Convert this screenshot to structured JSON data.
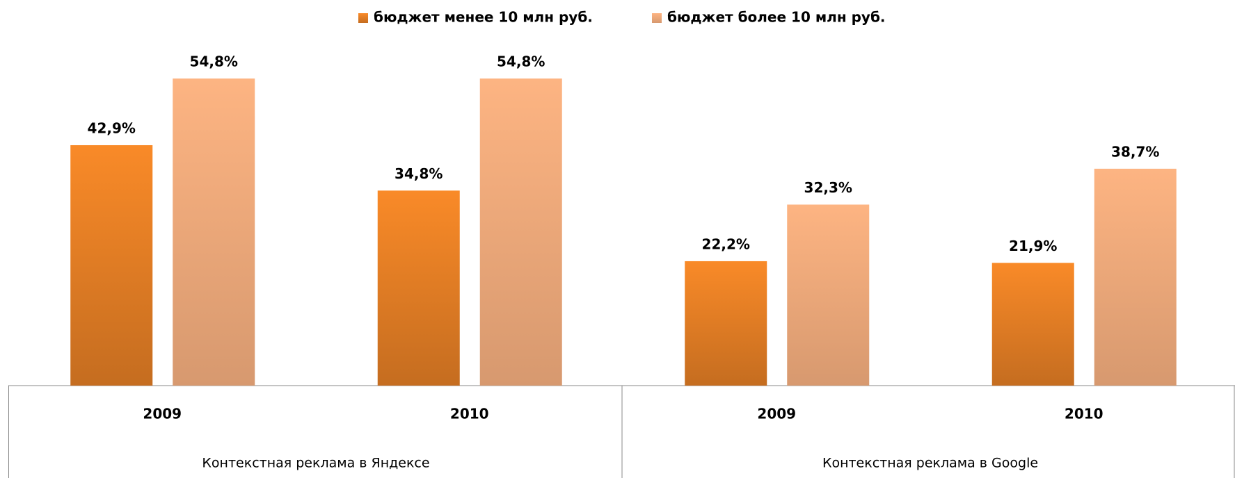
{
  "chart_data": {
    "type": "bar",
    "groups": [
      {
        "name": "Контекстная реклама в Яндексе",
        "categories": [
          "2009",
          "2010"
        ]
      },
      {
        "name": "Контекстная реклама в Google",
        "categories": [
          "2009",
          "2010"
        ]
      }
    ],
    "series": [
      {
        "name": "бюджет менее 10 млн руб.",
        "color": "#f98a28",
        "values": [
          42.9,
          34.8,
          22.2,
          21.9
        ],
        "value_labels": [
          "42,9%",
          "34,8%",
          "22,2%",
          "21,9%"
        ]
      },
      {
        "name": "бюджет более 10 млн руб.",
        "color": "#fdb482",
        "values": [
          54.8,
          54.8,
          32.3,
          38.7
        ],
        "value_labels": [
          "54,8%",
          "54,8%",
          "32,3%",
          "38,7%"
        ]
      }
    ],
    "legend": "top"
  }
}
